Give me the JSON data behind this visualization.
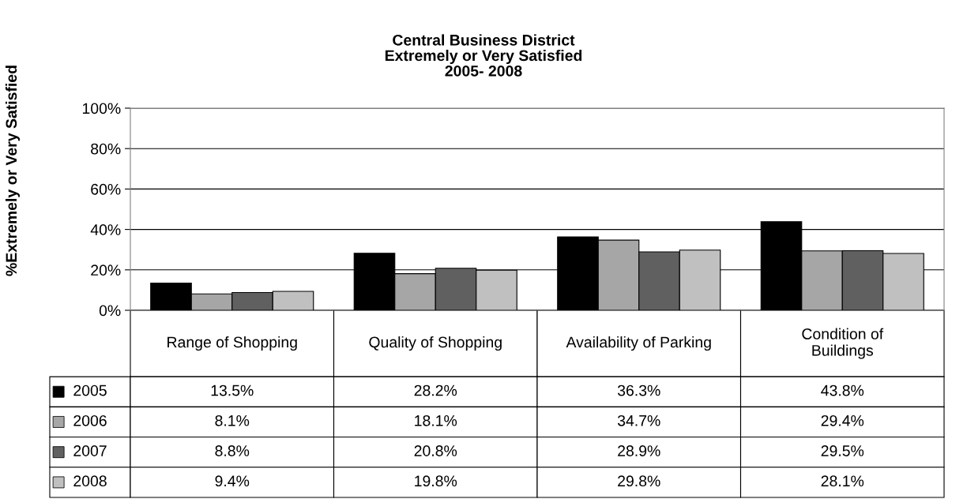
{
  "chart_data": {
    "type": "bar",
    "title": "Central Business District\nExtremely or Very Satisfied\n2005- 2008",
    "ylabel": "%Extremely or Very Satisfied",
    "categories": [
      "Range of Shopping",
      "Quality of Shopping",
      "Availability of Parking",
      "Condition of\nBuildings"
    ],
    "series": [
      {
        "name": "2005",
        "color": "#000000",
        "values": [
          13.5,
          28.2,
          36.3,
          43.8
        ],
        "value_labels": [
          "13.5%",
          "28.2%",
          "36.3%",
          "43.8%"
        ]
      },
      {
        "name": "2006",
        "color": "#a6a6a6",
        "values": [
          8.1,
          18.1,
          34.7,
          29.4
        ],
        "value_labels": [
          "8.1%",
          "18.1%",
          "34.7%",
          "29.4%"
        ]
      },
      {
        "name": "2007",
        "color": "#606060",
        "values": [
          8.8,
          20.8,
          28.9,
          29.5
        ],
        "value_labels": [
          "8.8%",
          "20.8%",
          "28.9%",
          "29.5%"
        ]
      },
      {
        "name": "2008",
        "color": "#c0c0c0",
        "values": [
          9.4,
          19.8,
          29.8,
          28.1
        ],
        "value_labels": [
          "9.4%",
          "19.8%",
          "29.8%",
          "28.1%"
        ]
      }
    ],
    "ylim": [
      0,
      100
    ],
    "yticks": [
      {
        "value": 0,
        "label": "0%"
      },
      {
        "value": 20,
        "label": "20%"
      },
      {
        "value": 40,
        "label": "40%"
      },
      {
        "value": 60,
        "label": "60%"
      },
      {
        "value": 80,
        "label": "80%"
      },
      {
        "value": 100,
        "label": "100%"
      }
    ],
    "grid": "y",
    "legend": "left"
  }
}
